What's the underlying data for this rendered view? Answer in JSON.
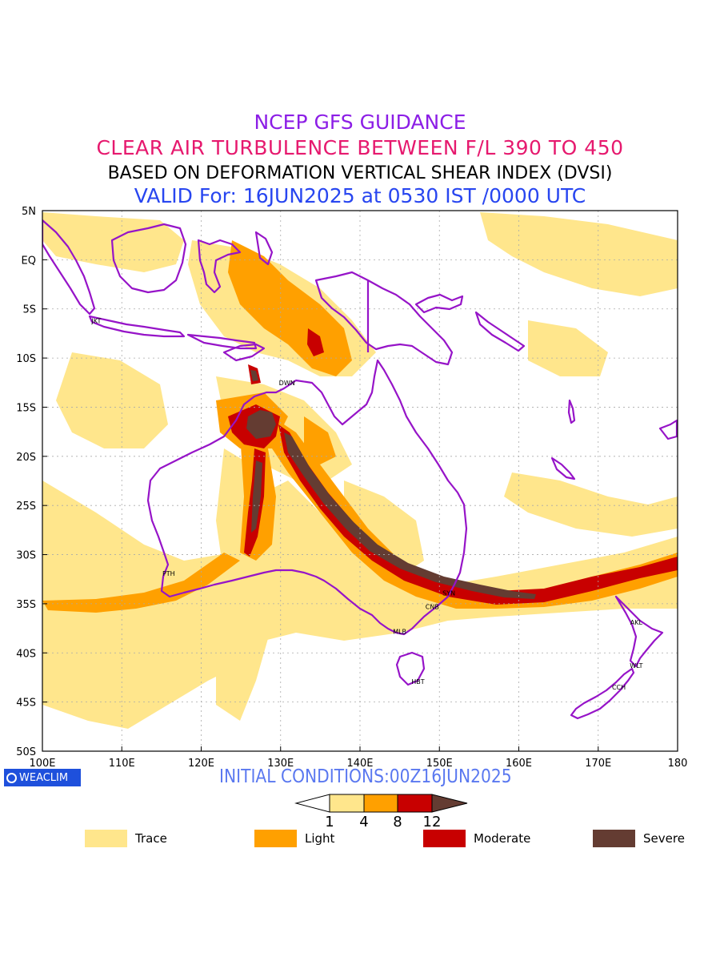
{
  "titles": {
    "line1": "NCEP GFS GUIDANCE",
    "line2": "CLEAR AIR TURBULENCE BETWEEN F/L 390 TO 450",
    "line3": "BASED ON DEFORMATION VERTICAL SHEAR INDEX (DVSI)",
    "line4": "VALID For: 16JUN2025 at 0530 IST /0000 UTC"
  },
  "colors": {
    "title1": "#8c1ee6",
    "title2": "#e6196e",
    "title3": "#000000",
    "title4": "#2846f0",
    "coast": "#9614c8",
    "trace": "#ffe68c",
    "light": "#ffa000",
    "moderate": "#c80000",
    "severe": "#643c32",
    "grid": "#aaaaaa",
    "init": "#5a78f0",
    "brand": "#1e50dc"
  },
  "map": {
    "lat_labels": [
      "5N",
      "EQ",
      "5S",
      "10S",
      "15S",
      "20S",
      "25S",
      "30S",
      "35S",
      "40S",
      "45S",
      "50S"
    ],
    "lon_labels": [
      "100E",
      "110E",
      "120E",
      "130E",
      "140E",
      "150E",
      "160E",
      "170E",
      "180"
    ],
    "cities": [
      {
        "code": "JKT",
        "lon": 106.8,
        "lat": -6.2
      },
      {
        "code": "DWN",
        "lon": 130.8,
        "lat": -12.5
      },
      {
        "code": "PTH",
        "lon": 115.9,
        "lat": -31.9
      },
      {
        "code": "SYN",
        "lon": 151.2,
        "lat": -33.9
      },
      {
        "code": "CNB",
        "lon": 149.1,
        "lat": -35.3
      },
      {
        "code": "MLB",
        "lon": 145.0,
        "lat": -37.8
      },
      {
        "code": "HBT",
        "lon": 147.3,
        "lat": -42.9
      },
      {
        "code": "AKL",
        "lon": 174.8,
        "lat": -36.9
      },
      {
        "code": "WLT",
        "lon": 174.8,
        "lat": -41.3
      },
      {
        "code": "CCH",
        "lon": 172.6,
        "lat": -43.5
      }
    ]
  },
  "brand": {
    "name": "WEACLIM",
    "icon": "globe-icon"
  },
  "initial_conditions": "INITIAL CONDITIONS:00Z16JUN2025",
  "colorbar": {
    "ticks": [
      "1",
      "4",
      "8",
      "12"
    ]
  },
  "legend": [
    {
      "label": "Trace",
      "color": "#ffe68c"
    },
    {
      "label": "Light",
      "color": "#ffa000"
    },
    {
      "label": "Moderate",
      "color": "#c80000"
    },
    {
      "label": "Severe",
      "color": "#643c32"
    }
  ]
}
